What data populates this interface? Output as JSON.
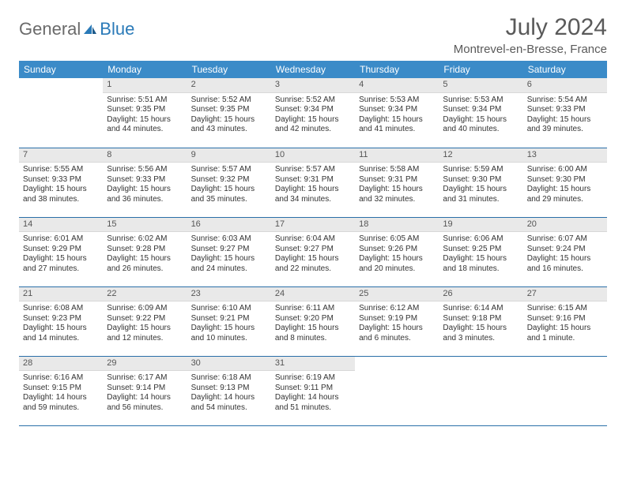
{
  "brand": {
    "part1": "General",
    "part2": "Blue"
  },
  "title": "July 2024",
  "location": "Montrevel-en-Bresse, France",
  "colors": {
    "header_bg": "#3b8bc8",
    "header_text": "#ffffff",
    "daynum_bg": "#e9e9e9",
    "row_border": "#2a6fa8",
    "title_color": "#5a5a5a",
    "logo_gray": "#6a6a6a",
    "logo_blue": "#2a7ab8"
  },
  "weekdays": [
    "Sunday",
    "Monday",
    "Tuesday",
    "Wednesday",
    "Thursday",
    "Friday",
    "Saturday"
  ],
  "weeks": [
    [
      null,
      {
        "n": "1",
        "sr": "Sunrise: 5:51 AM",
        "ss": "Sunset: 9:35 PM",
        "d1": "Daylight: 15 hours",
        "d2": "and 44 minutes."
      },
      {
        "n": "2",
        "sr": "Sunrise: 5:52 AM",
        "ss": "Sunset: 9:35 PM",
        "d1": "Daylight: 15 hours",
        "d2": "and 43 minutes."
      },
      {
        "n": "3",
        "sr": "Sunrise: 5:52 AM",
        "ss": "Sunset: 9:34 PM",
        "d1": "Daylight: 15 hours",
        "d2": "and 42 minutes."
      },
      {
        "n": "4",
        "sr": "Sunrise: 5:53 AM",
        "ss": "Sunset: 9:34 PM",
        "d1": "Daylight: 15 hours",
        "d2": "and 41 minutes."
      },
      {
        "n": "5",
        "sr": "Sunrise: 5:53 AM",
        "ss": "Sunset: 9:34 PM",
        "d1": "Daylight: 15 hours",
        "d2": "and 40 minutes."
      },
      {
        "n": "6",
        "sr": "Sunrise: 5:54 AM",
        "ss": "Sunset: 9:33 PM",
        "d1": "Daylight: 15 hours",
        "d2": "and 39 minutes."
      }
    ],
    [
      {
        "n": "7",
        "sr": "Sunrise: 5:55 AM",
        "ss": "Sunset: 9:33 PM",
        "d1": "Daylight: 15 hours",
        "d2": "and 38 minutes."
      },
      {
        "n": "8",
        "sr": "Sunrise: 5:56 AM",
        "ss": "Sunset: 9:33 PM",
        "d1": "Daylight: 15 hours",
        "d2": "and 36 minutes."
      },
      {
        "n": "9",
        "sr": "Sunrise: 5:57 AM",
        "ss": "Sunset: 9:32 PM",
        "d1": "Daylight: 15 hours",
        "d2": "and 35 minutes."
      },
      {
        "n": "10",
        "sr": "Sunrise: 5:57 AM",
        "ss": "Sunset: 9:31 PM",
        "d1": "Daylight: 15 hours",
        "d2": "and 34 minutes."
      },
      {
        "n": "11",
        "sr": "Sunrise: 5:58 AM",
        "ss": "Sunset: 9:31 PM",
        "d1": "Daylight: 15 hours",
        "d2": "and 32 minutes."
      },
      {
        "n": "12",
        "sr": "Sunrise: 5:59 AM",
        "ss": "Sunset: 9:30 PM",
        "d1": "Daylight: 15 hours",
        "d2": "and 31 minutes."
      },
      {
        "n": "13",
        "sr": "Sunrise: 6:00 AM",
        "ss": "Sunset: 9:30 PM",
        "d1": "Daylight: 15 hours",
        "d2": "and 29 minutes."
      }
    ],
    [
      {
        "n": "14",
        "sr": "Sunrise: 6:01 AM",
        "ss": "Sunset: 9:29 PM",
        "d1": "Daylight: 15 hours",
        "d2": "and 27 minutes."
      },
      {
        "n": "15",
        "sr": "Sunrise: 6:02 AM",
        "ss": "Sunset: 9:28 PM",
        "d1": "Daylight: 15 hours",
        "d2": "and 26 minutes."
      },
      {
        "n": "16",
        "sr": "Sunrise: 6:03 AM",
        "ss": "Sunset: 9:27 PM",
        "d1": "Daylight: 15 hours",
        "d2": "and 24 minutes."
      },
      {
        "n": "17",
        "sr": "Sunrise: 6:04 AM",
        "ss": "Sunset: 9:27 PM",
        "d1": "Daylight: 15 hours",
        "d2": "and 22 minutes."
      },
      {
        "n": "18",
        "sr": "Sunrise: 6:05 AM",
        "ss": "Sunset: 9:26 PM",
        "d1": "Daylight: 15 hours",
        "d2": "and 20 minutes."
      },
      {
        "n": "19",
        "sr": "Sunrise: 6:06 AM",
        "ss": "Sunset: 9:25 PM",
        "d1": "Daylight: 15 hours",
        "d2": "and 18 minutes."
      },
      {
        "n": "20",
        "sr": "Sunrise: 6:07 AM",
        "ss": "Sunset: 9:24 PM",
        "d1": "Daylight: 15 hours",
        "d2": "and 16 minutes."
      }
    ],
    [
      {
        "n": "21",
        "sr": "Sunrise: 6:08 AM",
        "ss": "Sunset: 9:23 PM",
        "d1": "Daylight: 15 hours",
        "d2": "and 14 minutes."
      },
      {
        "n": "22",
        "sr": "Sunrise: 6:09 AM",
        "ss": "Sunset: 9:22 PM",
        "d1": "Daylight: 15 hours",
        "d2": "and 12 minutes."
      },
      {
        "n": "23",
        "sr": "Sunrise: 6:10 AM",
        "ss": "Sunset: 9:21 PM",
        "d1": "Daylight: 15 hours",
        "d2": "and 10 minutes."
      },
      {
        "n": "24",
        "sr": "Sunrise: 6:11 AM",
        "ss": "Sunset: 9:20 PM",
        "d1": "Daylight: 15 hours",
        "d2": "and 8 minutes."
      },
      {
        "n": "25",
        "sr": "Sunrise: 6:12 AM",
        "ss": "Sunset: 9:19 PM",
        "d1": "Daylight: 15 hours",
        "d2": "and 6 minutes."
      },
      {
        "n": "26",
        "sr": "Sunrise: 6:14 AM",
        "ss": "Sunset: 9:18 PM",
        "d1": "Daylight: 15 hours",
        "d2": "and 3 minutes."
      },
      {
        "n": "27",
        "sr": "Sunrise: 6:15 AM",
        "ss": "Sunset: 9:16 PM",
        "d1": "Daylight: 15 hours",
        "d2": "and 1 minute."
      }
    ],
    [
      {
        "n": "28",
        "sr": "Sunrise: 6:16 AM",
        "ss": "Sunset: 9:15 PM",
        "d1": "Daylight: 14 hours",
        "d2": "and 59 minutes."
      },
      {
        "n": "29",
        "sr": "Sunrise: 6:17 AM",
        "ss": "Sunset: 9:14 PM",
        "d1": "Daylight: 14 hours",
        "d2": "and 56 minutes."
      },
      {
        "n": "30",
        "sr": "Sunrise: 6:18 AM",
        "ss": "Sunset: 9:13 PM",
        "d1": "Daylight: 14 hours",
        "d2": "and 54 minutes."
      },
      {
        "n": "31",
        "sr": "Sunrise: 6:19 AM",
        "ss": "Sunset: 9:11 PM",
        "d1": "Daylight: 14 hours",
        "d2": "and 51 minutes."
      },
      null,
      null,
      null
    ]
  ]
}
